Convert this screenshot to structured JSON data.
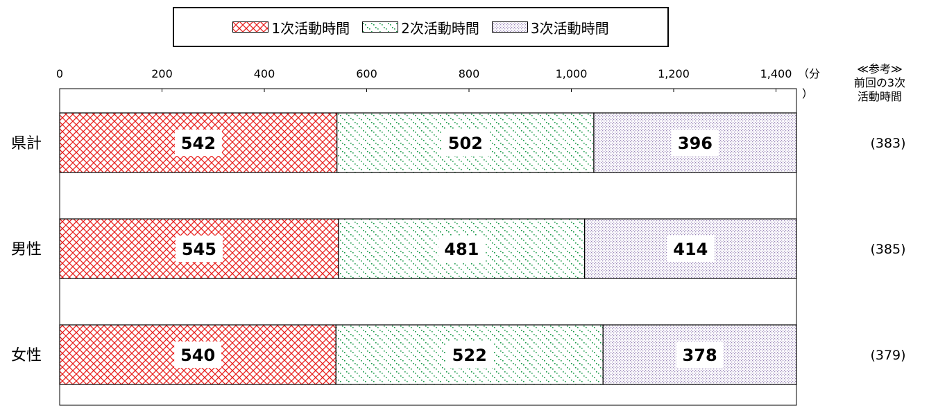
{
  "legend": {
    "items": [
      {
        "label": "1次活動時間",
        "pattern": "cross",
        "color": "#e8201e"
      },
      {
        "label": "2次活動時間",
        "pattern": "dots_green",
        "color": "#1a9a4a"
      },
      {
        "label": "3次活動時間",
        "pattern": "dots_purple",
        "color": "#9a86b8"
      }
    ]
  },
  "reference": {
    "heading_lines": [
      "≪参考≫",
      "前回の3次",
      "活動時間"
    ],
    "values": [
      "(383)",
      "(385)",
      "(379)"
    ]
  },
  "chart_data": {
    "type": "bar",
    "orientation": "horizontal",
    "stacked": true,
    "categories": [
      "県計",
      "男性",
      "女性"
    ],
    "series": [
      {
        "name": "1次活動時間",
        "values": [
          542,
          545,
          540
        ]
      },
      {
        "name": "2次活動時間",
        "values": [
          502,
          481,
          522
        ]
      },
      {
        "name": "3次活動時間",
        "values": [
          396,
          414,
          378
        ]
      }
    ],
    "xlim": [
      0,
      1440
    ],
    "xticks": [
      0,
      200,
      400,
      600,
      800,
      1000,
      1200,
      1400
    ],
    "xtick_labels": [
      "0",
      "200",
      "400",
      "600",
      "800",
      "1,000",
      "1,200",
      "1,400"
    ],
    "x_unit_label": "（分",
    "x_unit_label_cont": "）",
    "grid": false,
    "legend_position": "top"
  }
}
